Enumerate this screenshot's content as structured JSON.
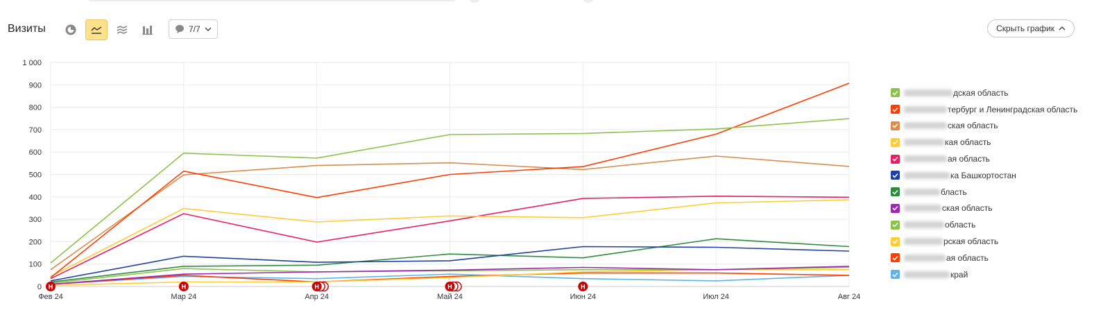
{
  "toolbar": {
    "title": "Визиты",
    "comments_count": "7/7",
    "hide_chart_label": "Скрыть график"
  },
  "colors": {
    "active_button_bg": "#ffe28a",
    "annotation_marker": "#cc0000"
  },
  "icons": [
    "pie-chart-icon",
    "line-chart-icon",
    "stacked-area-icon",
    "bar-chart-icon",
    "comment-icon",
    "chevron-down-icon",
    "chevron-up-icon"
  ],
  "chart_data": {
    "type": "line",
    "categories": [
      "Фев 24",
      "Мар 24",
      "Апр 24",
      "Май 24",
      "Июн 24",
      "Июл 24",
      "Авг 24"
    ],
    "y_ticks": [
      "0",
      "100",
      "200",
      "300",
      "400",
      "500",
      "600",
      "700",
      "800",
      "900",
      "1 000"
    ],
    "ylim": [
      0,
      1000
    ],
    "grid": true,
    "legend_position": "right",
    "series": [
      {
        "name": "…дская область",
        "color": "#8bc34a",
        "values": [
          105,
          595,
          573,
          678,
          683,
          703,
          749
        ]
      },
      {
        "name": "…тербург и Ленинградская область",
        "color": "#ff3d00",
        "values": [
          40,
          515,
          397,
          500,
          535,
          680,
          907
        ]
      },
      {
        "name": "…ская область",
        "color": "#d98c4c",
        "values": [
          75,
          498,
          540,
          552,
          522,
          582,
          536
        ]
      },
      {
        "name": "…кая область",
        "color": "#ffcc33",
        "values": [
          45,
          348,
          288,
          315,
          307,
          373,
          387
        ]
      },
      {
        "name": "…ая область",
        "color": "#e91e63",
        "values": [
          35,
          325,
          198,
          293,
          393,
          403,
          398
        ]
      },
      {
        "name": "…ка Башкортостан",
        "color": "#1e40a0",
        "values": [
          25,
          135,
          108,
          115,
          178,
          175,
          158
        ]
      },
      {
        "name": "…бласть",
        "color": "#2e8b3e",
        "values": [
          20,
          90,
          95,
          145,
          128,
          213,
          178
        ]
      },
      {
        "name": "…ская область",
        "color": "#9c27b0",
        "values": [
          10,
          55,
          65,
          73,
          85,
          75,
          90
        ]
      },
      {
        "name": "… область",
        "color": "#8bc34a",
        "values": [
          15,
          80,
          65,
          70,
          75,
          75,
          85
        ]
      },
      {
        "name": "…рская область",
        "color": "#ffcc33",
        "values": [
          5,
          20,
          20,
          40,
          65,
          75,
          75
        ]
      },
      {
        "name": "…ая область",
        "color": "#ff3d00",
        "values": [
          10,
          50,
          20,
          45,
          60,
          60,
          50
        ]
      },
      {
        "name": "… край",
        "color": "#5eb4e8",
        "values": [
          10,
          45,
          35,
          55,
          35,
          25,
          50
        ]
      }
    ],
    "annotation_markers": [
      {
        "category": "Фев 24",
        "label": "Н",
        "count": 1
      },
      {
        "category": "Мар 24",
        "label": "Н",
        "count": 1
      },
      {
        "category": "Апр 24",
        "label": "Н",
        "count": 3
      },
      {
        "category": "Май 24",
        "label": "Н",
        "count": 3
      },
      {
        "category": "Июн 24",
        "label": "Н",
        "count": 1
      }
    ]
  }
}
